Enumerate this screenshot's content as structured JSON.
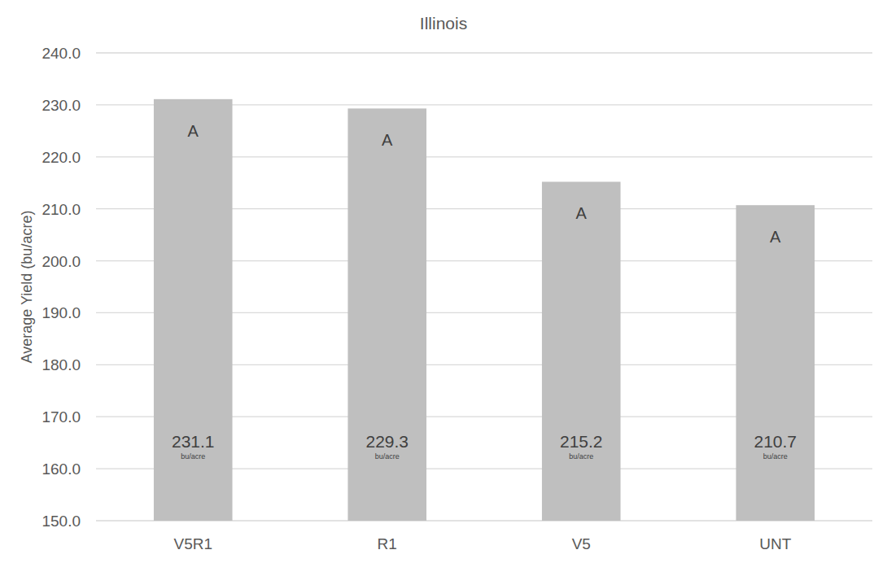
{
  "chart_data": {
    "type": "bar",
    "title": "Illinois",
    "y_label": "Average Yield (bu/acre)",
    "categories": [
      "V5R1",
      "R1",
      "V5",
      "UNT"
    ],
    "values": [
      231.1,
      229.3,
      215.2,
      210.7
    ],
    "annotations": [
      "A",
      "A",
      "A",
      "A"
    ],
    "value_unit": "bu/acre",
    "color": "#bfbfbf",
    "ylim": [
      150,
      240
    ],
    "yticks": [
      {
        "value": 150,
        "label": "150.0"
      },
      {
        "value": 160,
        "label": "160.0"
      },
      {
        "value": 170,
        "label": "170.0"
      },
      {
        "value": 180,
        "label": "180.0"
      },
      {
        "value": 190,
        "label": "190.0"
      },
      {
        "value": 200,
        "label": "200.0"
      },
      {
        "value": 210,
        "label": "210.0"
      },
      {
        "value": 220,
        "label": "220.0"
      },
      {
        "value": 230,
        "label": "230.0"
      },
      {
        "value": 240,
        "label": "240.0"
      }
    ],
    "grid": true,
    "data_labels": true
  }
}
